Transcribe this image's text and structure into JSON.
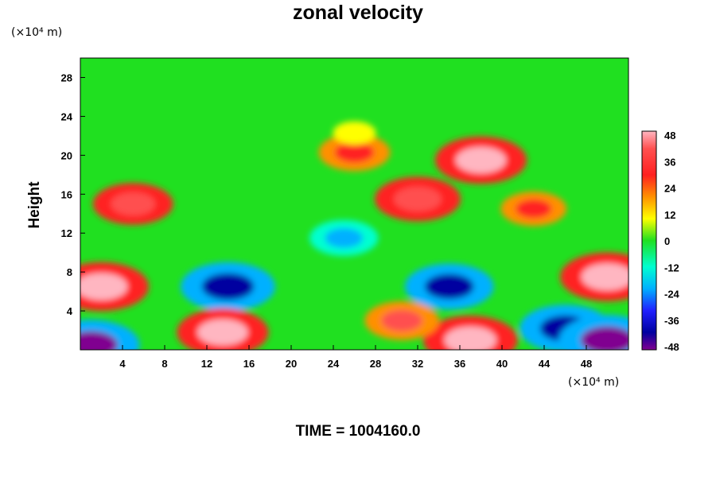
{
  "chart_data": {
    "type": "heatmap",
    "title": "zonal velocity",
    "ylabel": "Height",
    "xlabel": "",
    "x_unit": "(×10⁴ m)",
    "y_unit": "(×10⁴ m)",
    "xlim": [
      0,
      52
    ],
    "ylim": [
      0,
      30
    ],
    "x_ticks": [
      "4",
      "8",
      "12",
      "16",
      "20",
      "24",
      "28",
      "32",
      "36",
      "40",
      "44",
      "48"
    ],
    "y_ticks": [
      "4",
      "8",
      "12",
      "16",
      "20",
      "24",
      "28"
    ],
    "colorbar": {
      "min": -48,
      "max": 48,
      "tick_labels": [
        "48",
        "36",
        "24",
        "12",
        "0",
        "-12",
        "-24",
        "-36",
        "-48"
      ]
    },
    "features": [
      {
        "x": 2,
        "y": 6.5,
        "value": 46
      },
      {
        "x": 1,
        "y": 0.5,
        "value": -48
      },
      {
        "x": 14,
        "y": 6.5,
        "value": -46
      },
      {
        "x": 13.5,
        "y": 1.8,
        "value": 44
      },
      {
        "x": 35,
        "y": 6.5,
        "value": -42
      },
      {
        "x": 37,
        "y": 1,
        "value": 46
      },
      {
        "x": 50,
        "y": 7.5,
        "value": 46
      },
      {
        "x": 46,
        "y": 2.2,
        "value": -44
      },
      {
        "x": 50,
        "y": 1,
        "value": -48
      },
      {
        "x": 38,
        "y": 19.5,
        "value": 44
      },
      {
        "x": 32,
        "y": 15.5,
        "value": 40
      },
      {
        "x": 5,
        "y": 15,
        "value": 36
      },
      {
        "x": 43,
        "y": 14.5,
        "value": 26
      },
      {
        "x": 25,
        "y": 11.5,
        "value": -28
      },
      {
        "x": 30.5,
        "y": 3,
        "value": 32
      },
      {
        "x": 26,
        "y": 20.3,
        "value": 30
      },
      {
        "x": 26,
        "y": 22.3,
        "value": 10
      }
    ]
  },
  "footer": {
    "time_label": "TIME = 1004160.0"
  }
}
